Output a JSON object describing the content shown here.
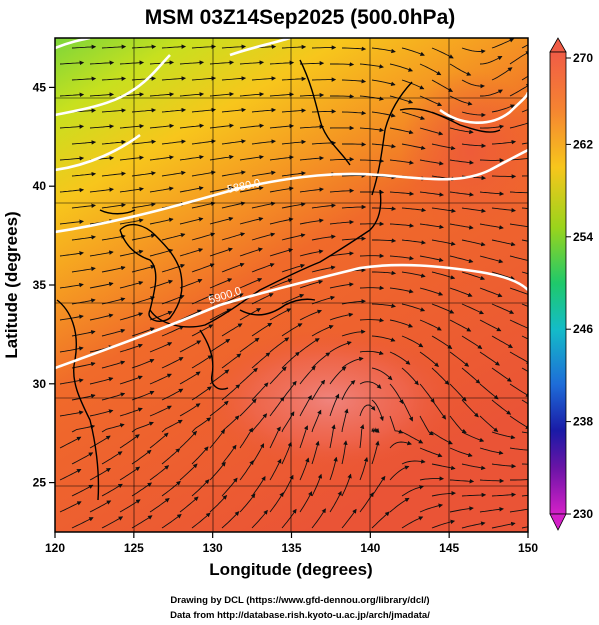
{
  "title": "MSM 03Z14Sep2025 (500.0hPa)",
  "map": {
    "lon_range": [
      120,
      150
    ],
    "lat_range": [
      22.5,
      47.5
    ],
    "x_ticks": [
      "120",
      "125",
      "130",
      "135",
      "140",
      "145",
      "150"
    ],
    "y_ticks": [
      "25",
      "30",
      "35",
      "40",
      "45"
    ],
    "x_label": "Longitude (degrees)",
    "y_label": "Latitude  (degrees)",
    "contours": [
      {
        "label": "5880.0"
      },
      {
        "label": "5900.0"
      }
    ]
  },
  "colorbar": {
    "ticks": [
      "270",
      "262",
      "254",
      "246",
      "238",
      "230"
    ],
    "colors": [
      "#f05c46",
      "#f58232",
      "#f7c61c",
      "#9ad41c",
      "#1fc96a",
      "#14bcc8",
      "#1e6cd8",
      "#1a1aa6",
      "#6a14a6",
      "#d420c8"
    ]
  },
  "footer": {
    "line1": "Drawing by DCL (https://www.gfd-dennou.org/library/dcl/)",
    "line2": "Data from http://database.rish.kyoto-u.ac.jp/arch/jmadata/"
  }
}
